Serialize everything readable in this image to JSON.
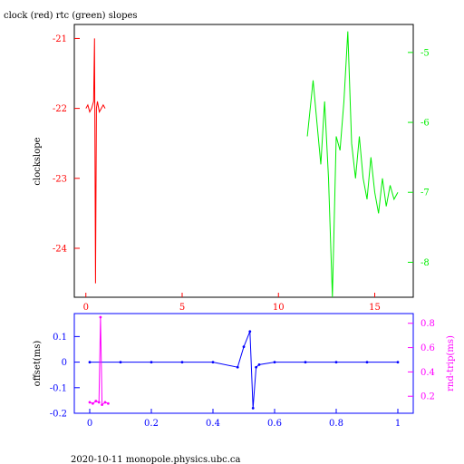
{
  "chart_data": [
    {
      "type": "line",
      "title": "clock (red) rtc (green) slopes",
      "ylabel": "clockslope",
      "xlim": [
        -0.6,
        17.0
      ],
      "ylim": [
        -24.7,
        -20.8
      ],
      "y2lim": [
        -8.5,
        -4.6
      ],
      "x_ticks": [
        "0",
        "5",
        "10",
        "15"
      ],
      "y_ticks": [
        "-21",
        "-22",
        "-23",
        "-24"
      ],
      "y2_ticks": [
        "-5",
        "-6",
        "-7",
        "-8"
      ],
      "colors": {
        "clock": "#ff0000",
        "rtc": "#00ee00",
        "axes": "#000000"
      },
      "series": [
        {
          "axis": "left",
          "x": [
            0.0,
            0.1,
            0.2,
            0.3,
            0.4,
            0.45,
            0.5,
            0.55,
            0.6,
            0.7,
            0.8,
            0.9,
            1.0
          ],
          "values": [
            -22.0,
            -21.95,
            -22.05,
            -22.0,
            -21.9,
            -21.0,
            -24.5,
            -22.0,
            -21.9,
            -22.05,
            -22.0,
            -21.95,
            -22.0
          ]
        },
        {
          "axis": "right",
          "x": [
            11.5,
            11.8,
            12.0,
            12.2,
            12.4,
            12.6,
            12.8,
            13.0,
            13.2,
            13.4,
            13.6,
            13.8,
            14.0,
            14.2,
            14.4,
            14.6,
            14.8,
            15.0,
            15.2,
            15.4,
            15.6,
            15.8,
            16.0,
            16.2
          ],
          "values": [
            -6.2,
            -5.4,
            -6.0,
            -6.6,
            -5.7,
            -6.8,
            -8.5,
            -6.2,
            -6.4,
            -5.7,
            -4.7,
            -6.3,
            -6.8,
            -6.2,
            -6.8,
            -7.1,
            -6.5,
            -7.0,
            -7.3,
            -6.8,
            -7.2,
            -6.9,
            -7.1,
            -7.0
          ]
        }
      ]
    },
    {
      "type": "scatter",
      "ylabel": "offset(ms)",
      "y2label": "rnd-trip(ms)",
      "xlim": [
        -0.05,
        1.05
      ],
      "ylim": [
        -0.2,
        0.19
      ],
      "y2lim": [
        0.06,
        0.88
      ],
      "x_ticks": [
        "0",
        "0.2",
        "0.4",
        "0.6",
        "0.8",
        "1"
      ],
      "y_ticks": [
        "0.1",
        "0",
        "-0.1",
        "-0.2"
      ],
      "y2_ticks": [
        "0.8",
        "0.6",
        "0.4",
        "0.2"
      ],
      "colors": {
        "offset": "#0000ff",
        "roundtrip": "#ff00ff"
      },
      "series": [
        {
          "axis": "left",
          "x": [
            0.0,
            0.1,
            0.2,
            0.3,
            0.4,
            0.48,
            0.5,
            0.52,
            0.53,
            0.54,
            0.55,
            0.6,
            0.7,
            0.8,
            0.9,
            1.0
          ],
          "values": [
            0.0,
            0.0,
            0.0,
            0.0,
            0.0,
            -0.02,
            0.06,
            0.12,
            -0.18,
            -0.02,
            -0.01,
            0.0,
            0.0,
            0.0,
            0.0,
            0.0
          ]
        },
        {
          "axis": "right",
          "x": [
            0.0,
            0.01,
            0.02,
            0.03,
            0.035,
            0.04,
            0.05,
            0.06
          ],
          "values": [
            0.15,
            0.14,
            0.16,
            0.15,
            0.85,
            0.13,
            0.15,
            0.14
          ]
        }
      ]
    }
  ],
  "footer": "2020-10-11 monopole.physics.ubc.ca"
}
